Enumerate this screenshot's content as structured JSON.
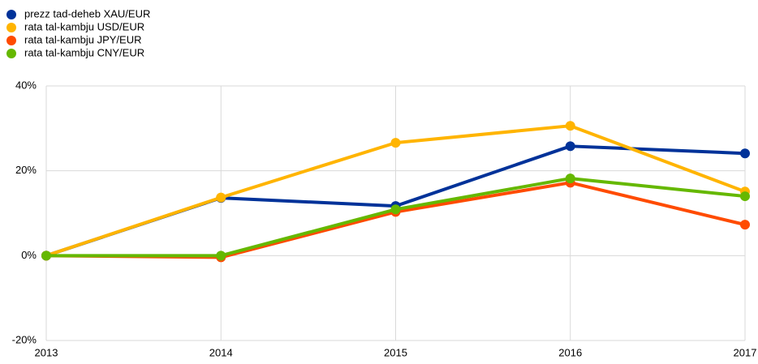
{
  "chart_data": {
    "type": "line",
    "categories": [
      "2013",
      "2014",
      "2015",
      "2016",
      "2017"
    ],
    "series": [
      {
        "name": "prezz tad-deheb XAU/EUR",
        "color": "#003299",
        "values": [
          0,
          13.6,
          11.7,
          25.8,
          24.1
        ]
      },
      {
        "name": "rata tal-kambju USD/EUR",
        "color": "#ffb400",
        "values": [
          0,
          13.7,
          26.6,
          30.6,
          15.1
        ]
      },
      {
        "name": "rata tal-kambju JPY/EUR",
        "color": "#ff4b00",
        "values": [
          0,
          -0.4,
          10.3,
          17.2,
          7.3
        ]
      },
      {
        "name": "rata tal-kambju CNY/EUR",
        "color": "#65b800",
        "values": [
          0,
          0,
          10.9,
          18.2,
          14.0
        ]
      }
    ],
    "ylim": [
      -20,
      40
    ],
    "yticks": [
      {
        "value": -20,
        "label": "-20%"
      },
      {
        "value": 0,
        "label": "0%"
      },
      {
        "value": 20,
        "label": "20%"
      },
      {
        "value": 40,
        "label": "40%"
      }
    ],
    "grid": true,
    "legend": "top-left"
  }
}
